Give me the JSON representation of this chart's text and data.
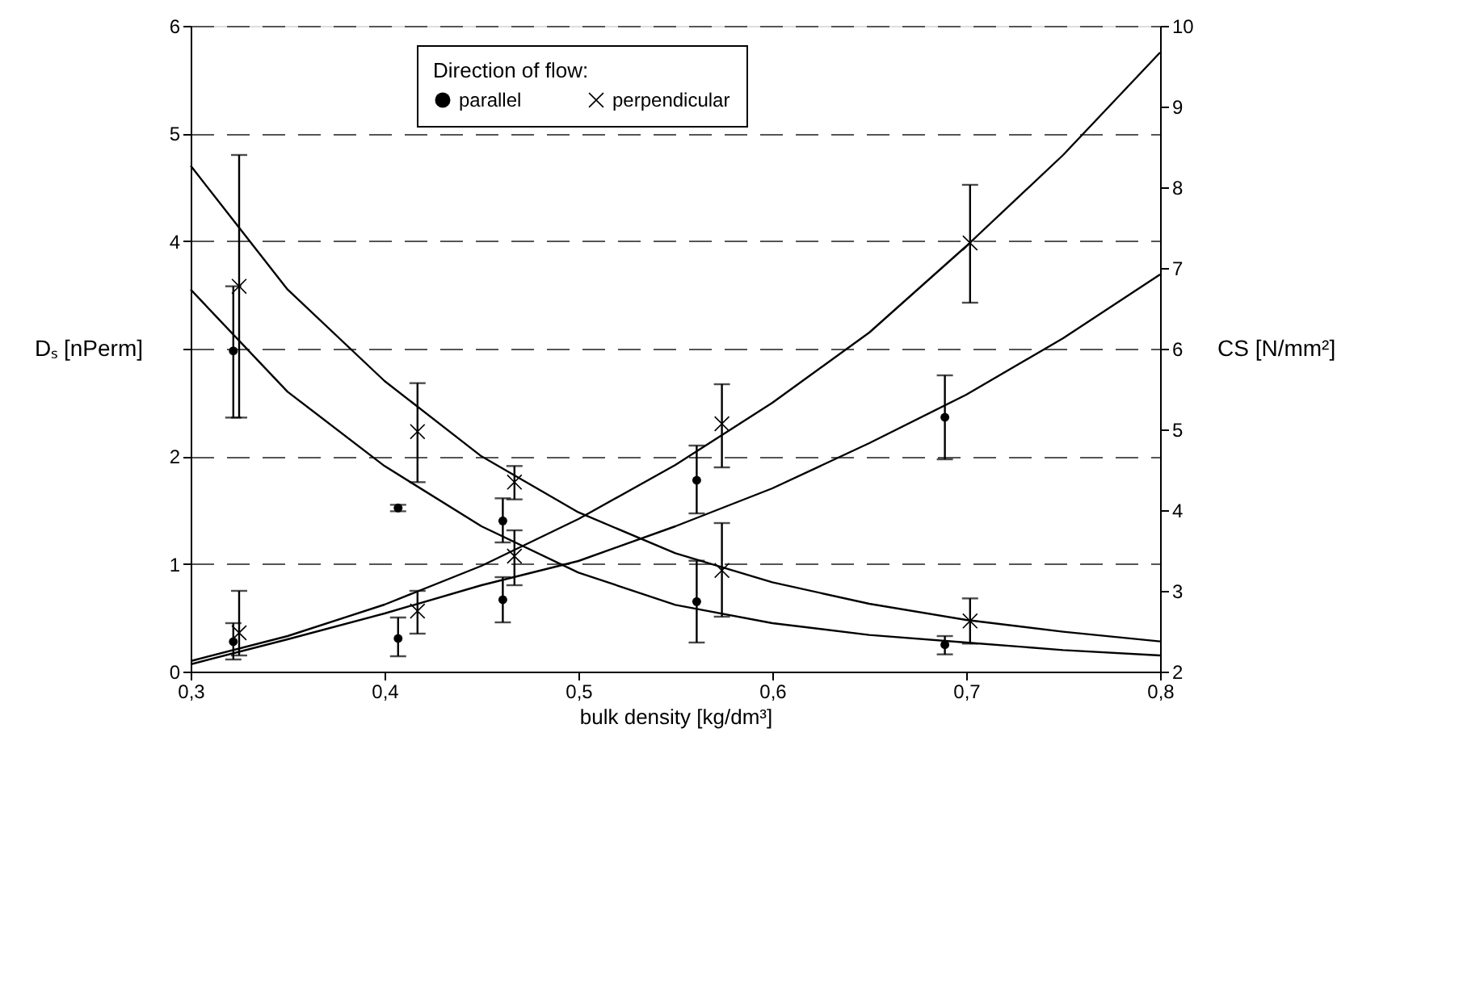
{
  "chart_data": {
    "type": "scatter",
    "xlabel": "bulk density [kg/dm³]",
    "ylabel": "Dₛ [nPerm]",
    "y2label": "CS [N/mm²]",
    "legend_title": "Direction of flow:",
    "xlim": [
      0.3,
      0.8
    ],
    "xticks": [
      {
        "value": 0.3,
        "label": "0,3"
      },
      {
        "value": 0.4,
        "label": "0,4"
      },
      {
        "value": 0.5,
        "label": "0,5"
      },
      {
        "value": 0.6,
        "label": "0,6"
      },
      {
        "value": 0.7,
        "label": "0,7"
      },
      {
        "value": 0.8,
        "label": "0,8"
      }
    ],
    "ylim": [
      0,
      6
    ],
    "yticks": [
      0,
      1,
      2,
      {
        "value": 3,
        "label": null
      },
      4,
      5,
      6
    ],
    "y2lim": [
      2,
      10
    ],
    "y2ticks": [
      2,
      3,
      4,
      5,
      6,
      7,
      8,
      9,
      10
    ],
    "grid": "y",
    "legend": "top",
    "series": [
      {
        "name": "parallel",
        "marker": "circle",
        "color": "#000000",
        "axis": "y",
        "x": [
          0.322,
          0.407,
          0.461,
          0.561,
          0.689
        ],
        "values": [
          2.98,
          1.52,
          1.4,
          0.65,
          0.25
        ],
        "errors": [
          [
            2.36,
            3.58
          ],
          [
            1.49,
            1.55
          ],
          [
            1.2,
            1.61
          ],
          [
            0.27,
            1.03
          ],
          [
            0.16,
            0.33
          ]
        ]
      },
      {
        "name": "perpendicular",
        "marker": "cross",
        "color": "#000000",
        "axis": "y",
        "x": [
          0.325,
          0.417,
          0.467,
          0.574,
          0.702
        ],
        "values": [
          3.58,
          2.23,
          1.76,
          0.94,
          0.47
        ],
        "errors": [
          [
            2.36,
            4.8
          ],
          [
            1.76,
            2.68
          ],
          [
            1.6,
            1.91
          ],
          [
            0.51,
            1.38
          ],
          [
            0.26,
            0.68
          ]
        ]
      },
      {
        "marker": "circle",
        "color": "#000000",
        "axis": "y2",
        "x": [
          0.322,
          0.407,
          0.461,
          0.561,
          0.689
        ],
        "values": [
          2.37,
          2.41,
          2.89,
          4.37,
          5.15
        ],
        "errors": [
          [
            2.15,
            2.6
          ],
          [
            2.19,
            2.67
          ],
          [
            2.61,
            3.17
          ],
          [
            3.96,
            4.8
          ],
          [
            4.63,
            5.67
          ]
        ]
      },
      {
        "marker": "cross",
        "color": "#000000",
        "axis": "y2",
        "x": [
          0.325,
          0.417,
          0.467,
          0.574,
          0.702
        ],
        "values": [
          2.48,
          2.75,
          3.43,
          5.07,
          7.31
        ],
        "errors": [
          [
            2.2,
            3.0
          ],
          [
            2.47,
            3.0
          ],
          [
            3.07,
            3.75
          ],
          [
            4.53,
            5.56
          ],
          [
            6.57,
            8.03
          ]
        ]
      },
      {
        "type": "line",
        "marker": "none",
        "line_style": "solid",
        "color": "#000000",
        "axis": "y",
        "x": [
          0.3,
          0.35,
          0.4,
          0.45,
          0.5,
          0.55,
          0.6,
          0.65,
          0.7,
          0.75,
          0.8
        ],
        "values": [
          3.55,
          2.6,
          1.91,
          1.35,
          0.92,
          0.62,
          0.45,
          0.34,
          0.27,
          0.2,
          0.15
        ]
      },
      {
        "type": "line",
        "marker": "none",
        "line_style": "solid",
        "color": "#000000",
        "axis": "y",
        "x": [
          0.3,
          0.35,
          0.4,
          0.45,
          0.5,
          0.55,
          0.6,
          0.65,
          0.7,
          0.75,
          0.8
        ],
        "values": [
          4.7,
          3.55,
          2.7,
          2.0,
          1.48,
          1.1,
          0.83,
          0.63,
          0.48,
          0.37,
          0.28
        ]
      },
      {
        "type": "line",
        "marker": "none",
        "line_style": "solid",
        "color": "#000000",
        "axis": "y2",
        "x": [
          0.3,
          0.35,
          0.4,
          0.45,
          0.5,
          0.55,
          0.6,
          0.65,
          0.7,
          0.75,
          0.8
        ],
        "values": [
          2.09,
          2.4,
          2.72,
          3.07,
          3.37,
          3.8,
          4.27,
          4.83,
          5.43,
          6.13,
          6.92
        ]
      },
      {
        "type": "line",
        "marker": "none",
        "line_style": "solid",
        "color": "#000000",
        "axis": "y2",
        "x": [
          0.3,
          0.35,
          0.4,
          0.45,
          0.5,
          0.55,
          0.6,
          0.65,
          0.7,
          0.75,
          0.8
        ],
        "values": [
          2.13,
          2.44,
          2.83,
          3.31,
          3.89,
          4.56,
          5.33,
          6.2,
          7.27,
          8.4,
          9.67
        ]
      }
    ]
  }
}
